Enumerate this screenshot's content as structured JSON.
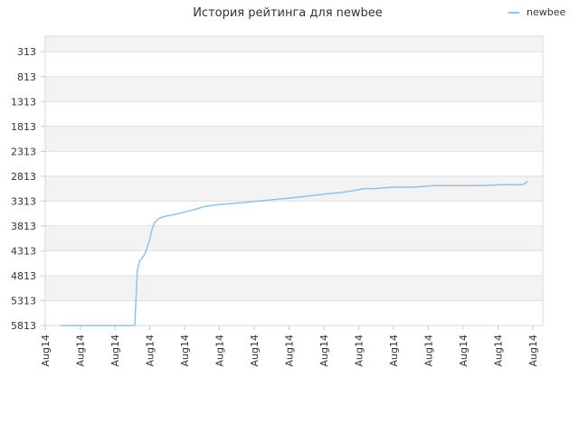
{
  "chart_data": {
    "type": "line",
    "title": "История рейтинга для newbee",
    "xlabel": "",
    "ylabel": "",
    "legend": "top-right",
    "grid": true,
    "y_reversed": true,
    "ylim": [
      5813,
      0
    ],
    "yticks": [
      313,
      813,
      1313,
      1813,
      2313,
      2813,
      3313,
      3813,
      4313,
      4813,
      5313,
      5813
    ],
    "xticks": [
      "Aug14",
      "Aug14",
      "Aug14",
      "Aug14",
      "Aug14",
      "Aug14",
      "Aug14",
      "Aug14",
      "Aug14",
      "Aug14",
      "Aug14",
      "Aug14",
      "Aug14",
      "Aug14",
      "Aug14"
    ],
    "colors": {
      "series": "#8fc3ea",
      "band": "#f3f3f3",
      "grid": "#e0e0e0"
    },
    "series": [
      {
        "name": "newbee",
        "x": [
          0.03,
          0.18,
          0.185,
          0.19,
          0.2,
          0.21,
          0.215,
          0.22,
          0.23,
          0.24,
          0.26,
          0.28,
          0.3,
          0.32,
          0.34,
          0.36,
          0.4,
          0.44,
          0.48,
          0.52,
          0.56,
          0.6,
          0.62,
          0.64,
          0.66,
          0.7,
          0.72,
          0.74,
          0.78,
          0.8,
          0.84,
          0.88,
          0.9,
          0.92,
          0.94,
          0.96,
          0.97
        ],
        "values": [
          5813,
          5813,
          4713,
          4513,
          4383,
          4083,
          3863,
          3743,
          3653,
          3623,
          3583,
          3533,
          3483,
          3423,
          3393,
          3373,
          3343,
          3303,
          3263,
          3223,
          3173,
          3133,
          3103,
          3063,
          3063,
          3033,
          3033,
          3033,
          3003,
          3003,
          3003,
          3003,
          2993,
          2983,
          2983,
          2983,
          2913
        ]
      }
    ]
  }
}
